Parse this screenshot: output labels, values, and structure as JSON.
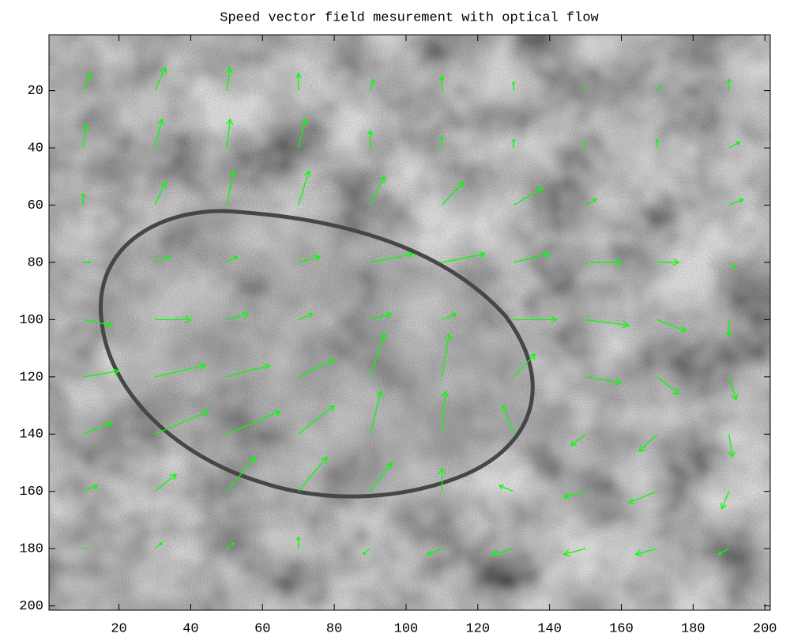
{
  "chart_data": {
    "type": "quiver",
    "title": "Speed vector field mesurement with optical flow",
    "color": "#00ff00",
    "xlim": [
      0.5,
      201.5
    ],
    "ylim": [
      0.5,
      201.5
    ],
    "y_reversed": true,
    "xticks": [
      20,
      40,
      60,
      80,
      100,
      120,
      140,
      160,
      180,
      200
    ],
    "yticks": [
      20,
      40,
      60,
      80,
      100,
      120,
      140,
      160,
      180,
      200
    ],
    "x": [
      10,
      30,
      50,
      70,
      90,
      110,
      130,
      150,
      170,
      190,
      10,
      30,
      50,
      70,
      90,
      110,
      130,
      150,
      170,
      190,
      10,
      30,
      50,
      70,
      90,
      110,
      130,
      150,
      170,
      190,
      10,
      30,
      50,
      70,
      90,
      110,
      130,
      150,
      170,
      190,
      10,
      30,
      50,
      70,
      90,
      110,
      130,
      150,
      170,
      190,
      10,
      30,
      50,
      70,
      90,
      110,
      130,
      150,
      170,
      190,
      10,
      30,
      50,
      70,
      90,
      110,
      130,
      150,
      170,
      190,
      10,
      30,
      50,
      70,
      90,
      110,
      130,
      150,
      170,
      190,
      10,
      30,
      50,
      70,
      90,
      110,
      130,
      150,
      170,
      190
    ],
    "y": [
      20,
      20,
      20,
      20,
      20,
      20,
      20,
      20,
      20,
      20,
      40,
      40,
      40,
      40,
      40,
      40,
      40,
      40,
      40,
      40,
      60,
      60,
      60,
      60,
      60,
      60,
      60,
      60,
      60,
      60,
      80,
      80,
      80,
      80,
      80,
      80,
      80,
      80,
      80,
      80,
      100,
      100,
      100,
      100,
      100,
      100,
      100,
      100,
      100,
      100,
      120,
      120,
      120,
      120,
      120,
      120,
      120,
      120,
      120,
      120,
      140,
      140,
      140,
      140,
      140,
      140,
      140,
      140,
      140,
      140,
      160,
      160,
      160,
      160,
      160,
      160,
      160,
      160,
      160,
      160,
      180,
      180,
      180,
      180,
      180,
      180,
      180,
      180,
      180,
      180
    ],
    "u": [
      2,
      3,
      1,
      0,
      1,
      0,
      0,
      0,
      1,
      0,
      1,
      2,
      1,
      2,
      0,
      0,
      0,
      0,
      0,
      3,
      0,
      3,
      2,
      3,
      4,
      6,
      8,
      3,
      0,
      4,
      2,
      4,
      3,
      6,
      12,
      12,
      10,
      10,
      6,
      2,
      8,
      10,
      6,
      4,
      6,
      4,
      12,
      12,
      8,
      0,
      10,
      14,
      12,
      10,
      4,
      2,
      6,
      10,
      6,
      2,
      8,
      15,
      15,
      10,
      3,
      1,
      -3,
      -4,
      -5,
      1,
      4,
      6,
      8,
      8,
      6,
      0,
      -4,
      -6,
      -8,
      -2,
      1,
      2,
      2,
      0,
      -2,
      -4,
      -6,
      -6,
      -6,
      -3
    ],
    "v": [
      -6,
      -8,
      -8,
      -6,
      -4,
      -5,
      -3,
      -2,
      -2,
      -4,
      -8,
      -10,
      -10,
      -10,
      -6,
      -4,
      -3,
      -2,
      -3,
      -2,
      -4,
      -8,
      -12,
      -12,
      -10,
      -8,
      -6,
      -2,
      0,
      -2,
      0,
      -2,
      -2,
      -2,
      -3,
      -3,
      -3,
      0,
      0,
      2,
      2,
      0,
      -2,
      -2,
      -2,
      -2,
      0,
      2,
      4,
      6,
      -2,
      -4,
      -4,
      -6,
      -15,
      -15,
      -8,
      2,
      6,
      8,
      -4,
      -8,
      -8,
      -10,
      -15,
      -15,
      -10,
      4,
      6,
      8,
      -2,
      -6,
      -12,
      -12,
      -10,
      -8,
      -2,
      2,
      4,
      6,
      0,
      -2,
      -2,
      -4,
      2,
      2,
      2,
      2,
      2,
      2
    ]
  }
}
